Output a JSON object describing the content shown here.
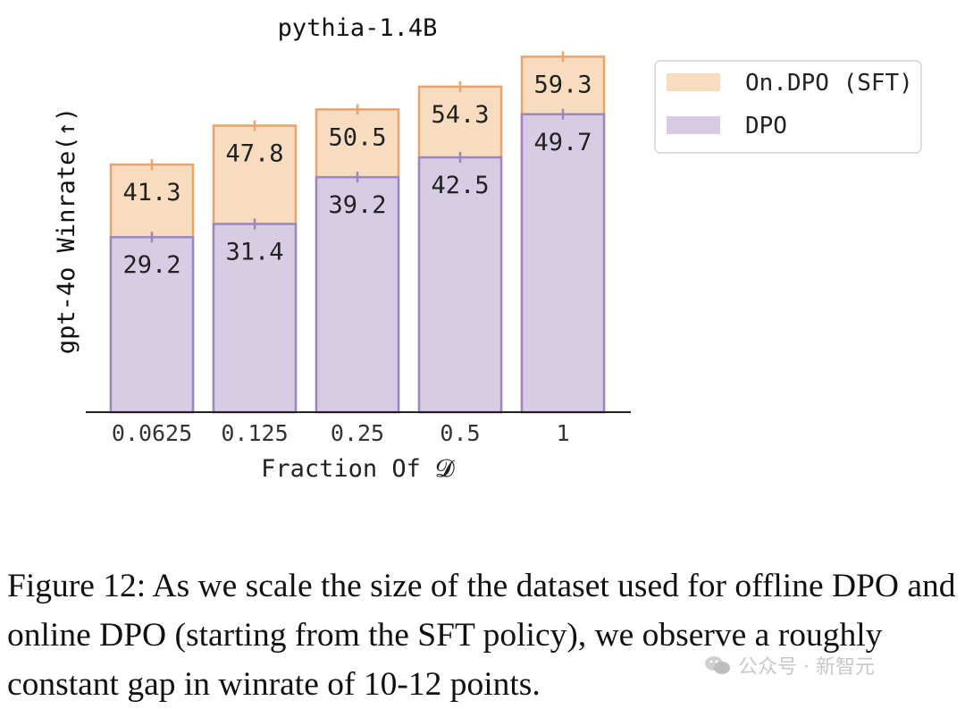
{
  "chart_data": {
    "type": "bar",
    "stacked": false,
    "title": "pythia-1.4B",
    "xlabel": "Fraction Of 𝓓",
    "ylabel": "gpt-4o Winrate(↑)",
    "categories": [
      "0.0625",
      "0.125",
      "0.25",
      "0.5",
      "1"
    ],
    "series": [
      {
        "name": "On.DPO (SFT)",
        "values": [
          41.3,
          47.8,
          50.5,
          54.3,
          59.3
        ],
        "color": "#f7dcc0",
        "edge": "#eaa36a"
      },
      {
        "name": "DPO",
        "values": [
          29.2,
          31.4,
          39.2,
          42.5,
          49.7
        ],
        "color": "#d7cce4",
        "edge": "#9b86bd"
      }
    ],
    "ylim": [
      0,
      61
    ],
    "grid": false,
    "legend": "upper-right, outside plot"
  },
  "caption": "Figure 12: As we scale the size of the dataset used for offline DPO and online DPO (starting from the SFT policy), we observe a roughly constant gap in winrate of 10-12 points.",
  "watermark": "公众号 · 新智元"
}
